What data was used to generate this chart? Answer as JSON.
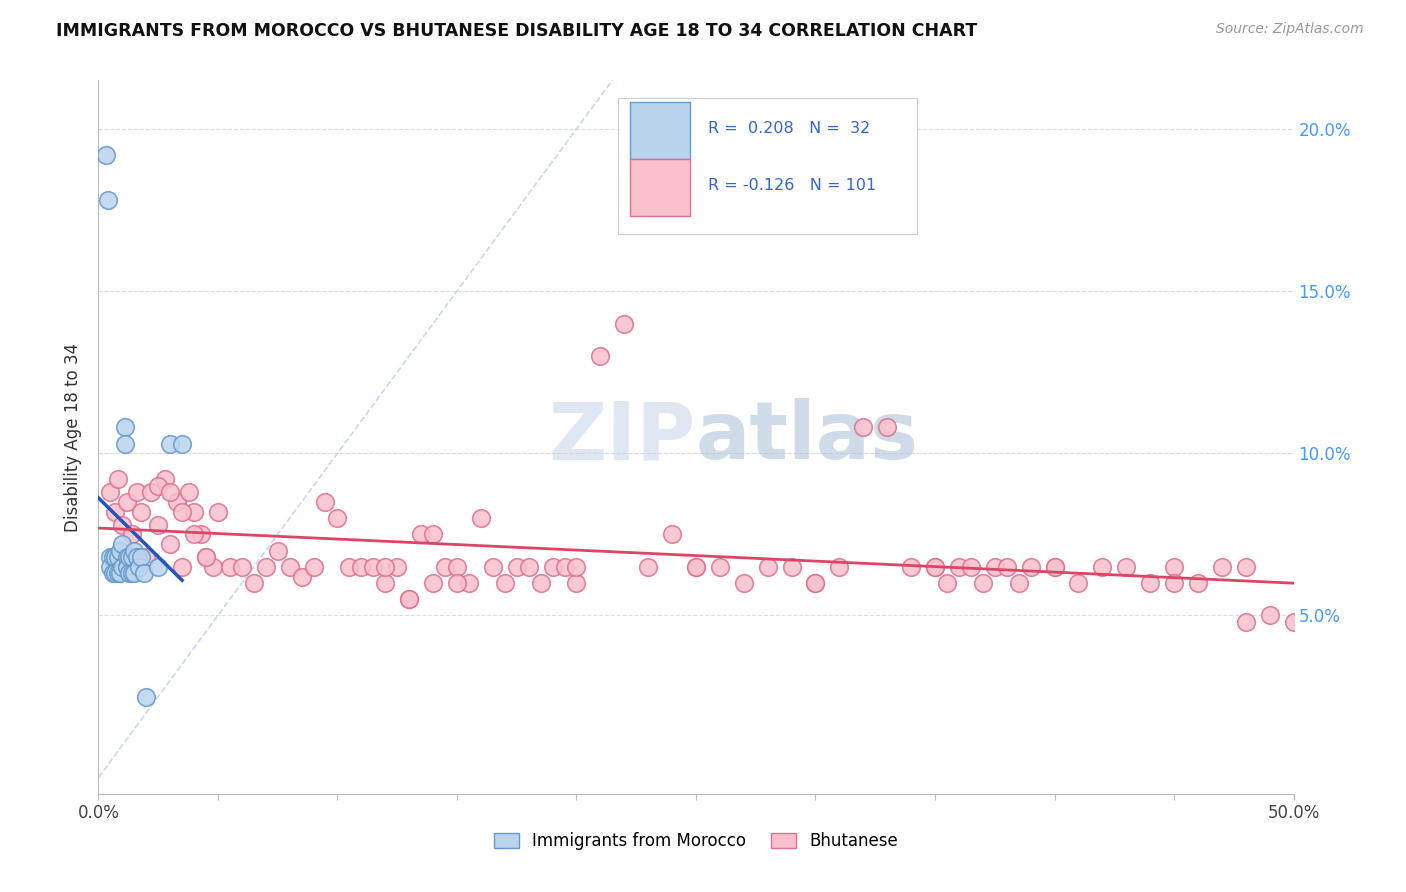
{
  "title": "IMMIGRANTS FROM MOROCCO VS BHUTANESE DISABILITY AGE 18 TO 34 CORRELATION CHART",
  "source": "Source: ZipAtlas.com",
  "ylabel": "Disability Age 18 to 34",
  "xlim": [
    0.0,
    0.5
  ],
  "ylim": [
    -0.005,
    0.215
  ],
  "yticks": [
    0.0,
    0.05,
    0.1,
    0.15,
    0.2
  ],
  "ytick_labels": [
    "",
    "5.0%",
    "10.0%",
    "15.0%",
    "20.0%"
  ],
  "morocco_color": "#bad4ee",
  "bhutanese_color": "#f7c0cc",
  "morocco_edge": "#6699cc",
  "bhutanese_edge": "#e07090",
  "morocco_trendline_color": "#2255bb",
  "bhutanese_trendline_color": "#dd4466",
  "diagonal_color": "#bbccee",
  "morocco_R": 0.208,
  "morocco_N": 32,
  "bhutanese_R": -0.126,
  "bhutanese_N": 101,
  "legend_label1": "Immigrants from Morocco",
  "legend_label2": "Bhutanese",
  "watermark": "ZIPatlas",
  "watermark_color": "#ccd9ee",
  "morocco_x": [
    0.003,
    0.004,
    0.005,
    0.005,
    0.006,
    0.006,
    0.007,
    0.007,
    0.008,
    0.008,
    0.009,
    0.009,
    0.01,
    0.01,
    0.011,
    0.011,
    0.012,
    0.012,
    0.013,
    0.013,
    0.014,
    0.014,
    0.015,
    0.015,
    0.016,
    0.017,
    0.018,
    0.019,
    0.02,
    0.025,
    0.03,
    0.035
  ],
  "morocco_y": [
    0.192,
    0.178,
    0.068,
    0.065,
    0.068,
    0.063,
    0.068,
    0.063,
    0.068,
    0.063,
    0.07,
    0.063,
    0.072,
    0.065,
    0.108,
    0.103,
    0.068,
    0.065,
    0.068,
    0.063,
    0.068,
    0.063,
    0.07,
    0.063,
    0.068,
    0.065,
    0.068,
    0.063,
    0.025,
    0.065,
    0.103,
    0.103
  ],
  "bhutanese_x": [
    0.005,
    0.007,
    0.008,
    0.01,
    0.012,
    0.014,
    0.016,
    0.018,
    0.02,
    0.022,
    0.025,
    0.028,
    0.03,
    0.033,
    0.035,
    0.038,
    0.04,
    0.043,
    0.045,
    0.048,
    0.05,
    0.055,
    0.06,
    0.065,
    0.07,
    0.075,
    0.08,
    0.085,
    0.09,
    0.095,
    0.1,
    0.105,
    0.11,
    0.115,
    0.12,
    0.125,
    0.13,
    0.135,
    0.14,
    0.145,
    0.15,
    0.155,
    0.16,
    0.165,
    0.17,
    0.175,
    0.18,
    0.185,
    0.19,
    0.195,
    0.2,
    0.21,
    0.22,
    0.23,
    0.24,
    0.25,
    0.26,
    0.27,
    0.28,
    0.29,
    0.3,
    0.31,
    0.32,
    0.33,
    0.34,
    0.35,
    0.355,
    0.36,
    0.365,
    0.37,
    0.375,
    0.38,
    0.385,
    0.39,
    0.4,
    0.41,
    0.42,
    0.43,
    0.44,
    0.45,
    0.46,
    0.47,
    0.48,
    0.49,
    0.5,
    0.025,
    0.03,
    0.035,
    0.04,
    0.045,
    0.12,
    0.13,
    0.14,
    0.15,
    0.2,
    0.25,
    0.3,
    0.35,
    0.4,
    0.45,
    0.48
  ],
  "bhutanese_y": [
    0.088,
    0.082,
    0.092,
    0.078,
    0.085,
    0.075,
    0.088,
    0.082,
    0.068,
    0.088,
    0.078,
    0.092,
    0.072,
    0.085,
    0.065,
    0.088,
    0.082,
    0.075,
    0.068,
    0.065,
    0.082,
    0.065,
    0.065,
    0.06,
    0.065,
    0.07,
    0.065,
    0.062,
    0.065,
    0.085,
    0.08,
    0.065,
    0.065,
    0.065,
    0.06,
    0.065,
    0.055,
    0.075,
    0.06,
    0.065,
    0.065,
    0.06,
    0.08,
    0.065,
    0.06,
    0.065,
    0.065,
    0.06,
    0.065,
    0.065,
    0.06,
    0.13,
    0.14,
    0.065,
    0.075,
    0.065,
    0.065,
    0.06,
    0.065,
    0.065,
    0.06,
    0.065,
    0.108,
    0.108,
    0.065,
    0.065,
    0.06,
    0.065,
    0.065,
    0.06,
    0.065,
    0.065,
    0.06,
    0.065,
    0.065,
    0.06,
    0.065,
    0.065,
    0.06,
    0.065,
    0.06,
    0.065,
    0.065,
    0.05,
    0.048,
    0.09,
    0.088,
    0.082,
    0.075,
    0.068,
    0.065,
    0.055,
    0.075,
    0.06,
    0.065,
    0.065,
    0.06,
    0.065,
    0.065,
    0.06,
    0.048
  ]
}
